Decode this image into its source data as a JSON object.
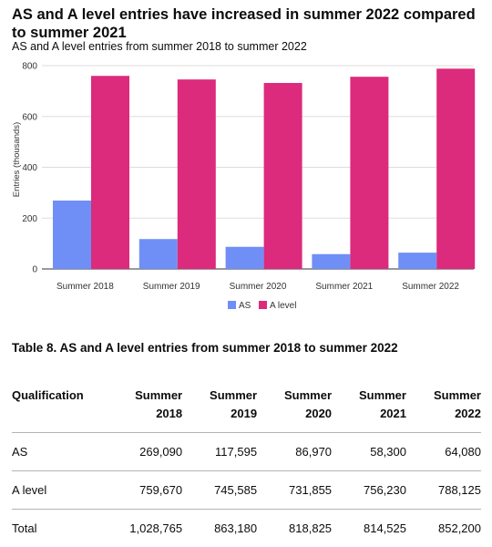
{
  "title": "AS and A level entries have increased in summer 2022 compared to summer 2021",
  "subtitle": "AS and A level entries from summer 2018 to summer 2022",
  "chart_data": {
    "type": "bar",
    "categories": [
      "Summer 2018",
      "Summer 2019",
      "Summer 2020",
      "Summer 2021",
      "Summer 2022"
    ],
    "series": [
      {
        "name": "AS",
        "values": [
          269.09,
          117.595,
          86.97,
          58.3,
          64.08
        ]
      },
      {
        "name": "A level",
        "values": [
          759.67,
          745.585,
          731.855,
          756.23,
          788.125
        ]
      }
    ],
    "ylabel": "Entries (thousands)",
    "yticks": [
      0,
      200,
      400,
      600,
      800
    ],
    "ylim": [
      0,
      800
    ],
    "grid": true,
    "legend": "bottom",
    "colors": [
      "#6f8ff7",
      "#dc2a7c"
    ]
  },
  "table": {
    "caption": "Table 8. AS and A level entries from summer 2018 to summer 2022",
    "headers": [
      [
        "Qualification"
      ],
      [
        "Summer",
        "2018"
      ],
      [
        "Summer",
        "2019"
      ],
      [
        "Summer",
        "2020"
      ],
      [
        "Summer",
        "2021"
      ],
      [
        "Summer",
        "2022"
      ]
    ],
    "rows": [
      [
        "AS",
        "269,090",
        "117,595",
        "86,970",
        "58,300",
        "64,080"
      ],
      [
        "A level",
        "759,670",
        "745,585",
        "731,855",
        "756,230",
        "788,125"
      ],
      [
        "Total",
        "1,028,765",
        "863,180",
        "818,825",
        "814,525",
        "852,200"
      ]
    ]
  }
}
